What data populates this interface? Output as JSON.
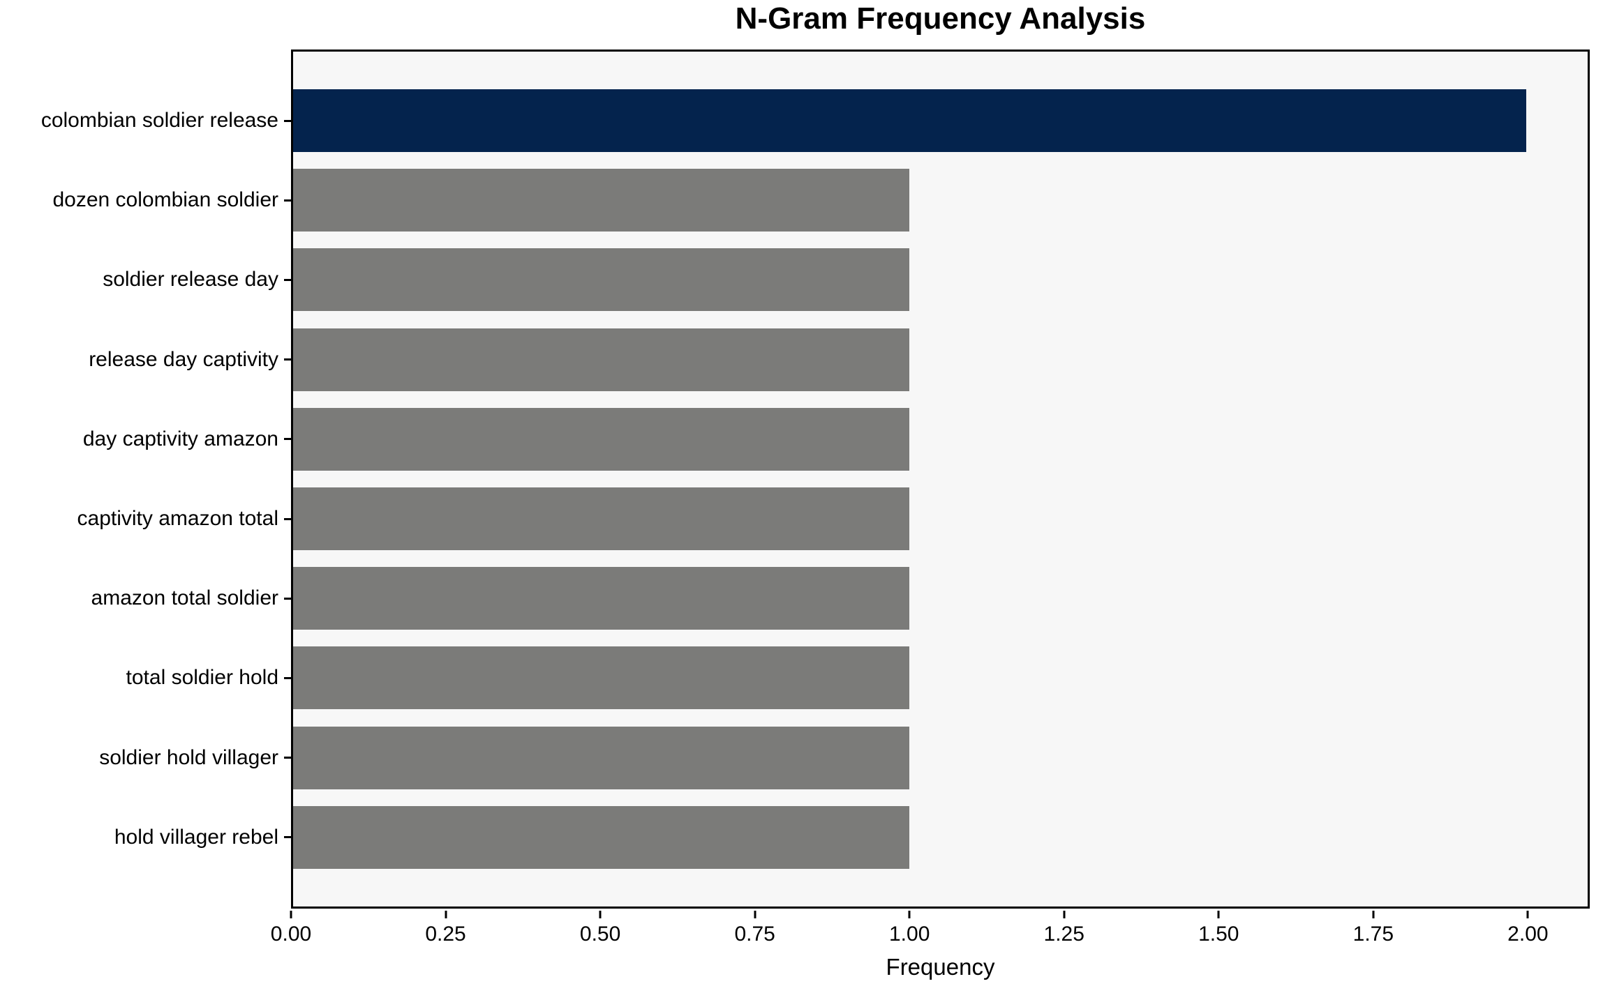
{
  "chart_data": {
    "type": "bar",
    "orientation": "horizontal",
    "title": "N-Gram Frequency Analysis",
    "xlabel": "Frequency",
    "ylabel": "",
    "categories": [
      "colombian soldier release",
      "dozen colombian soldier",
      "soldier release day",
      "release day captivity",
      "day captivity amazon",
      "captivity amazon total",
      "amazon total soldier",
      "total soldier hold",
      "soldier hold villager",
      "hold villager rebel"
    ],
    "values": [
      2.0,
      1.0,
      1.0,
      1.0,
      1.0,
      1.0,
      1.0,
      1.0,
      1.0,
      1.0
    ],
    "bar_colors": [
      "#04234d",
      "#7b7b79",
      "#7b7b79",
      "#7b7b79",
      "#7b7b79",
      "#7b7b79",
      "#7b7b79",
      "#7b7b79",
      "#7b7b79",
      "#7b7b79"
    ],
    "xlim": [
      0,
      2.1
    ],
    "xticks": [
      0,
      0.25,
      0.5,
      0.75,
      1.0,
      1.25,
      1.5,
      1.75,
      2.0
    ],
    "xtick_labels": [
      "0.00",
      "0.25",
      "0.50",
      "0.75",
      "1.00",
      "1.25",
      "1.50",
      "1.75",
      "2.00"
    ],
    "grid": false,
    "legend_position": "none",
    "colors": {
      "highlight_bar": "#04234d",
      "default_bar": "#7b7b79",
      "plot_background": "#f7f7f7",
      "figure_background": "#ffffff",
      "spine": "#000000",
      "text": "#000000"
    }
  }
}
